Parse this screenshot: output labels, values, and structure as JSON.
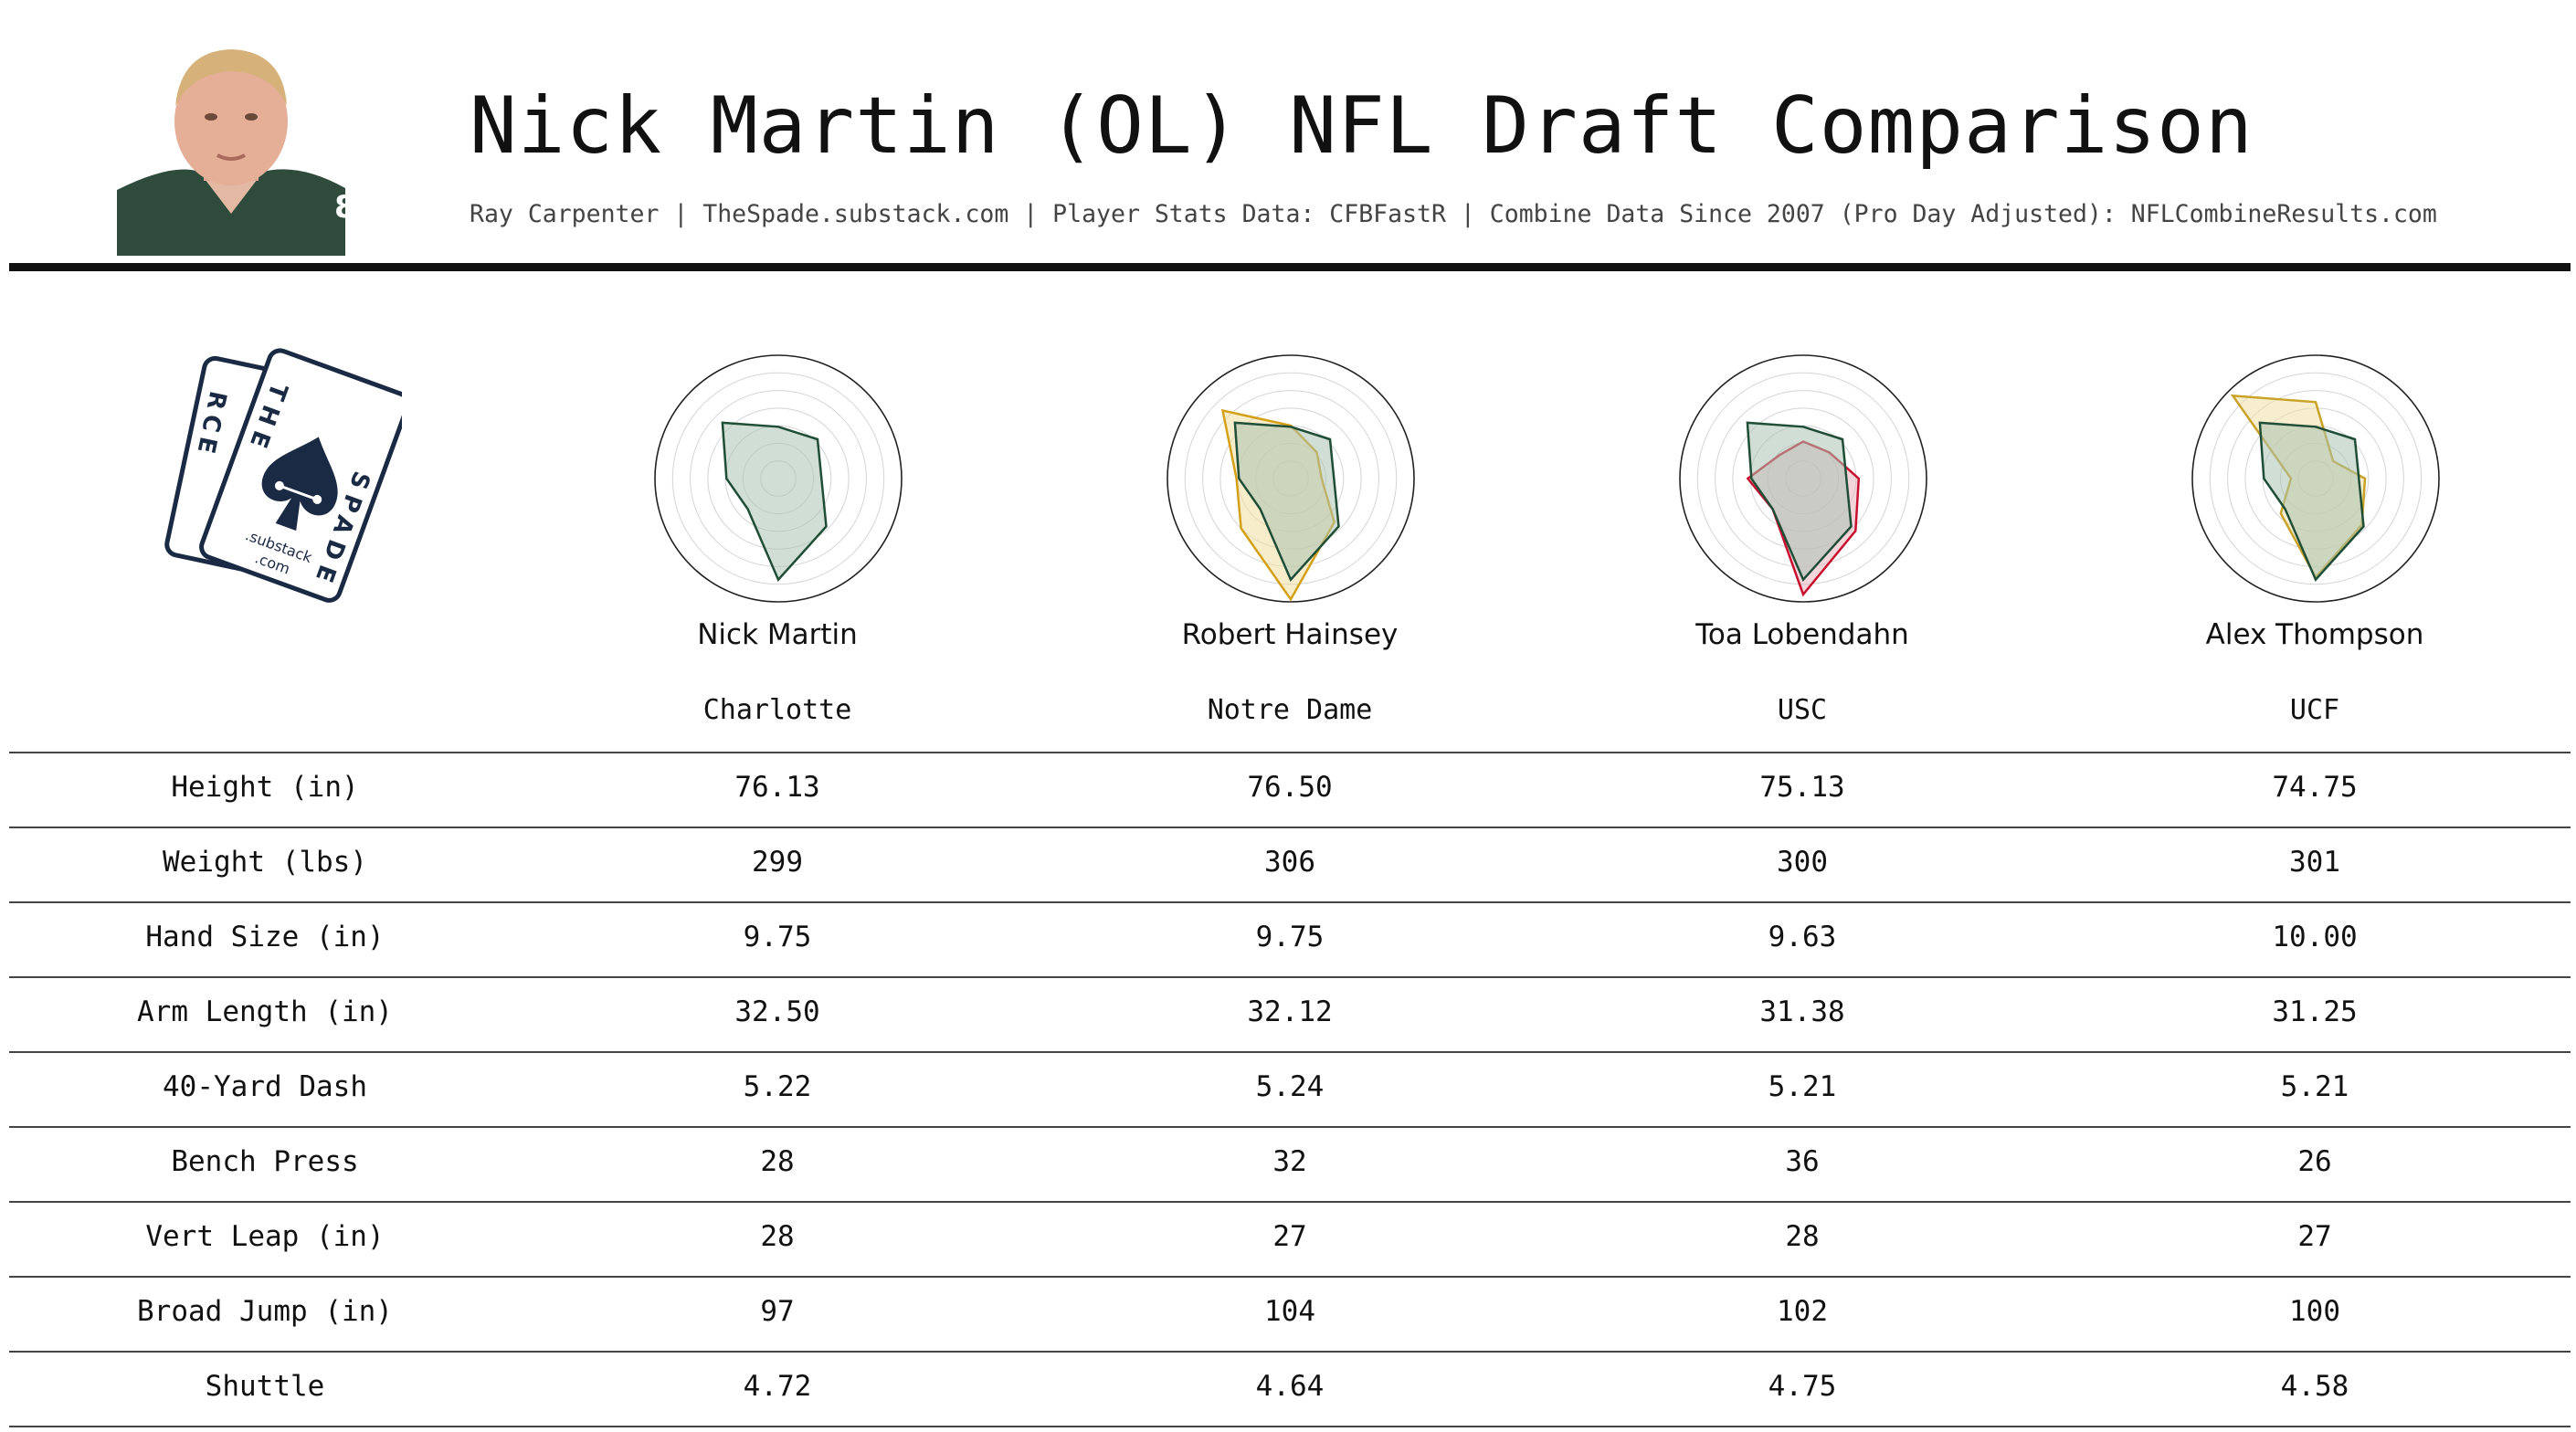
{
  "header": {
    "title": "Nick Martin (OL) NFL Draft Comparison",
    "subtitle": "Ray Carpenter | TheSpade.substack.com | Player Stats Data: CFBFastR | Combine Data Since 2007 (Pro Day Adjusted): NFLCombineResults.com"
  },
  "logo": {
    "back_card_letters": "RCE",
    "front_card_top": "THE",
    "front_card_side": "SPADE",
    "substack": ".substack",
    "com": ".com"
  },
  "colors": {
    "base_series": "#1f4d36",
    "base_fill": "#a9c2b3",
    "notre_dame": "#d4a017",
    "usc": "#c8102e",
    "ucf": "#c9a227",
    "rule": "#111111"
  },
  "players": [
    {
      "name": "Nick Martin",
      "school": "Charlotte"
    },
    {
      "name": "Robert Hainsey",
      "school": "Notre Dame"
    },
    {
      "name": "Toa Lobendahn",
      "school": "USC"
    },
    {
      "name": "Alex Thompson",
      "school": "UCF"
    }
  ],
  "table": {
    "rows": [
      {
        "label": "Height (in)",
        "values": [
          "76.13",
          "76.50",
          "75.13",
          "74.75"
        ]
      },
      {
        "label": "Weight (lbs)",
        "values": [
          "299",
          "306",
          "300",
          "301"
        ]
      },
      {
        "label": "Hand Size (in)",
        "values": [
          "9.75",
          "9.75",
          "9.63",
          "10.00"
        ]
      },
      {
        "label": "Arm Length (in)",
        "values": [
          "32.50",
          "32.12",
          "31.38",
          "31.25"
        ]
      },
      {
        "label": "40-Yard Dash",
        "values": [
          "5.22",
          "5.24",
          "5.21",
          "5.21"
        ]
      },
      {
        "label": "Bench Press",
        "values": [
          "28",
          "32",
          "36",
          "26"
        ]
      },
      {
        "label": "Vert Leap (in)",
        "values": [
          "28",
          "27",
          "28",
          "27"
        ]
      },
      {
        "label": "Broad Jump (in)",
        "values": [
          "97",
          "104",
          "102",
          "100"
        ]
      },
      {
        "label": "Shuttle",
        "values": [
          "4.72",
          "4.64",
          "4.75",
          "4.58"
        ]
      }
    ]
  },
  "chart_data": [
    {
      "type": "radar",
      "player": "Nick Martin",
      "rmax": 1.0,
      "series": [
        {
          "color": "#1f4d36",
          "fill": "#a9c2b3",
          "values": [
            0.42,
            0.45,
            0.35,
            0.55,
            0.82,
            0.35,
            0.42,
            0.64
          ]
        }
      ]
    },
    {
      "type": "radar",
      "player": "Robert Hainsey",
      "rmax": 1.0,
      "series": [
        {
          "color": "#d4a017",
          "fill": "#f2dfa0",
          "values": [
            0.43,
            0.3,
            0.25,
            0.5,
            0.98,
            0.57,
            0.44,
            0.78
          ]
        },
        {
          "color": "#1f4d36",
          "fill": "#a9c2b3",
          "values": [
            0.42,
            0.45,
            0.35,
            0.55,
            0.82,
            0.35,
            0.42,
            0.64
          ]
        }
      ]
    },
    {
      "type": "radar",
      "player": "Toa Lobendahn",
      "rmax": 1.0,
      "series": [
        {
          "color": "#c8102e",
          "fill": "#e8b4bb",
          "values": [
            0.3,
            0.3,
            0.45,
            0.6,
            0.94,
            0.35,
            0.45,
            0.27
          ]
        },
        {
          "color": "#1f4d36",
          "fill": "#a9c2b3",
          "values": [
            0.42,
            0.45,
            0.35,
            0.55,
            0.82,
            0.35,
            0.42,
            0.64
          ]
        }
      ]
    },
    {
      "type": "radar",
      "player": "Alex Thompson",
      "rmax": 1.0,
      "series": [
        {
          "color": "#c9a227",
          "fill": "#efe0a8",
          "values": [
            0.62,
            0.2,
            0.4,
            0.53,
            0.8,
            0.4,
            0.2,
            0.95
          ]
        },
        {
          "color": "#1f4d36",
          "fill": "#a9c2b3",
          "values": [
            0.42,
            0.45,
            0.35,
            0.55,
            0.82,
            0.35,
            0.42,
            0.64
          ]
        }
      ]
    }
  ]
}
